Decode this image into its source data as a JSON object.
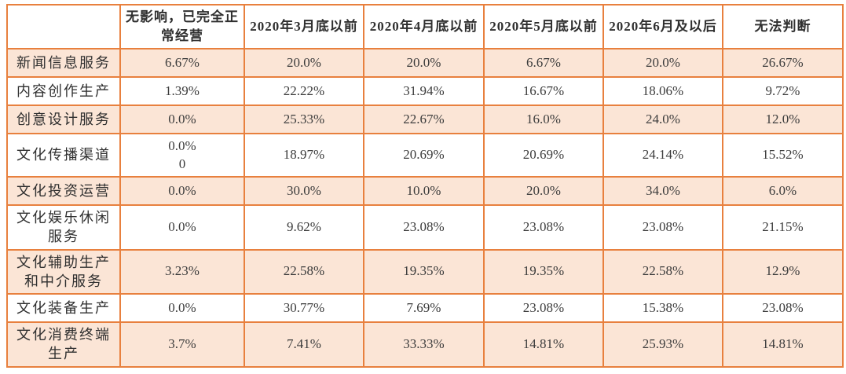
{
  "table": {
    "border_color": "#E8803E",
    "stripe_color": "#FBE5D6",
    "text_color": "#3c3c3c",
    "columns": [
      "",
      "无影响，已完全正常经营",
      "2020年3月底以前",
      "2020年4月底以前",
      "2020年5月底以前",
      "2020年6月及以后",
      "无法判断"
    ],
    "rows": [
      {
        "label": "新闻信息服务",
        "values": [
          "6.67%",
          "20.0%",
          "20.0%",
          "6.67%",
          "20.0%",
          "26.67%"
        ]
      },
      {
        "label": "内容创作生产",
        "values": [
          "1.39%",
          "22.22%",
          "31.94%",
          "16.67%",
          "18.06%",
          "9.72%"
        ]
      },
      {
        "label": "创意设计服务",
        "values": [
          "0.0%",
          "25.33%",
          "22.67%",
          "16.0%",
          "24.0%",
          "12.0%"
        ]
      },
      {
        "label": "文化传播渠道",
        "values": [
          "0.0%\n0",
          "18.97%",
          "20.69%",
          "20.69%",
          "24.14%",
          "15.52%"
        ]
      },
      {
        "label": "文化投资运营",
        "values": [
          "0.0%",
          "30.0%",
          "10.0%",
          "20.0%",
          "34.0%",
          "6.0%"
        ]
      },
      {
        "label": "文化娱乐休闲服务",
        "values": [
          "0.0%",
          "9.62%",
          "23.08%",
          "23.08%",
          "23.08%",
          "21.15%"
        ]
      },
      {
        "label": "文化辅助生产和中介服务",
        "values": [
          "3.23%",
          "22.58%",
          "19.35%",
          "19.35%",
          "22.58%",
          "12.9%"
        ]
      },
      {
        "label": "文化装备生产",
        "values": [
          "0.0%",
          "30.77%",
          "7.69%",
          "23.08%",
          "15.38%",
          "23.08%"
        ]
      },
      {
        "label": "文化消费终端生产",
        "values": [
          "3.7%",
          "7.41%",
          "33.33%",
          "14.81%",
          "25.93%",
          "14.81%"
        ]
      }
    ]
  }
}
